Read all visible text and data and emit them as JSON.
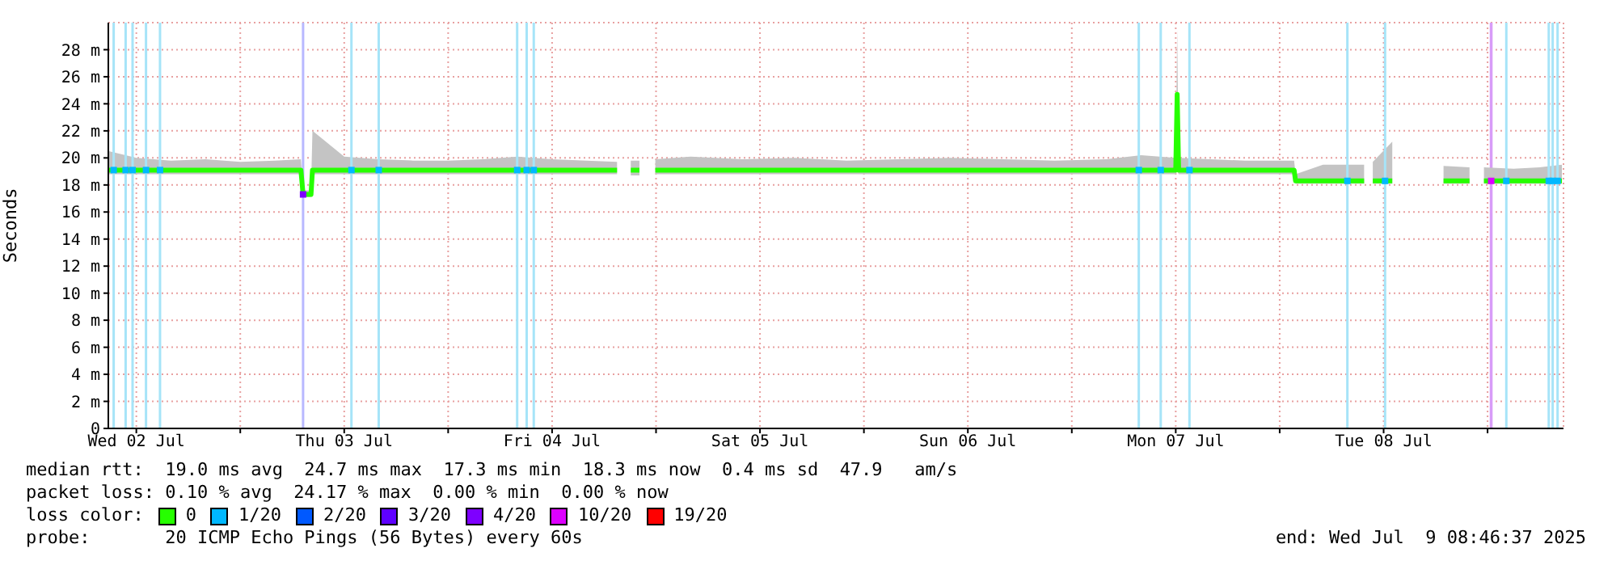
{
  "chart_data": {
    "type": "line",
    "ylabel": "Seconds",
    "legend_title": "loss color:",
    "legend": "bottom",
    "grid": true,
    "annotations": [
      "median rtt:  19.0 ms avg  24.7 ms max  17.3 ms min  18.3 ms now  0.4 ms sd  47.9   am/s",
      "packet loss: 0.10 % avg  24.17 % max  0.00 % min  0.00 % now",
      "probe:       20 ICMP Echo Pings (56 Bytes) every 60s",
      "end: Wed Jul  9 08:46:37 2025"
    ],
    "xlim": [
      "2025-07-02T08:46",
      "2025-07-09T08:46"
    ],
    "xticks": [
      {
        "value": "2025-07-02T12:00",
        "label": "Wed 02 Jul"
      },
      {
        "value": "2025-07-03T00:00",
        "label": null
      },
      {
        "value": "2025-07-03T12:00",
        "label": "Thu 03 Jul"
      },
      {
        "value": "2025-07-04T00:00",
        "label": null
      },
      {
        "value": "2025-07-04T12:00",
        "label": "Fri 04 Jul"
      },
      {
        "value": "2025-07-05T00:00",
        "label": null
      },
      {
        "value": "2025-07-05T12:00",
        "label": "Sat 05 Jul"
      },
      {
        "value": "2025-07-06T00:00",
        "label": null
      },
      {
        "value": "2025-07-06T12:00",
        "label": "Sun 06 Jul"
      },
      {
        "value": "2025-07-07T00:00",
        "label": null
      },
      {
        "value": "2025-07-07T12:00",
        "label": "Mon 07 Jul"
      },
      {
        "value": "2025-07-08T00:00",
        "label": null
      },
      {
        "value": "2025-07-08T12:00",
        "label": "Tue 08 Jul"
      },
      {
        "value": "2025-07-09T00:00",
        "label": null
      }
    ],
    "ylim": [
      0,
      30
    ],
    "yticks": [
      0,
      {
        "value": 2,
        "label": "2 m"
      },
      {
        "value": 4,
        "label": "4 m"
      },
      {
        "value": 6,
        "label": "6 m"
      },
      {
        "value": 8,
        "label": "8 m"
      },
      {
        "value": 10,
        "label": "10 m"
      },
      {
        "value": 12,
        "label": "12 m"
      },
      {
        "value": 14,
        "label": "14 m"
      },
      {
        "value": 16,
        "label": "16 m"
      },
      {
        "value": 18,
        "label": "18 m"
      },
      {
        "value": 20,
        "label": "20 m"
      },
      {
        "value": 22,
        "label": "22 m"
      },
      {
        "value": 24,
        "label": "24 m"
      },
      {
        "value": 26,
        "label": "26 m"
      },
      {
        "value": 28,
        "label": "28 m"
      }
    ],
    "bands": [
      {
        "axis": "x",
        "from": "2025-07-09T00:15",
        "to": "2025-07-09T00:35",
        "color": "#d89cf8"
      }
    ],
    "ref_lines": [
      {
        "axis": "x",
        "value": "2025-07-02T09:23",
        "color": "#a6e4f8"
      },
      {
        "axis": "x",
        "value": "2025-07-02T10:46",
        "color": "#a6e4f8"
      },
      {
        "axis": "x",
        "value": "2025-07-02T11:34",
        "color": "#a6e4f8"
      },
      {
        "axis": "x",
        "value": "2025-07-02T13:07",
        "color": "#a6e4f8"
      },
      {
        "axis": "x",
        "value": "2025-07-02T14:44",
        "color": "#a6e4f8"
      },
      {
        "axis": "x",
        "value": "2025-07-03T07:15",
        "color": "#b8b8ff"
      },
      {
        "axis": "x",
        "value": "2025-07-03T12:50",
        "color": "#a6e4f8"
      },
      {
        "axis": "x",
        "value": "2025-07-03T15:59",
        "color": "#a6e4f8"
      },
      {
        "axis": "x",
        "value": "2025-07-04T07:58",
        "color": "#a6e4f8"
      },
      {
        "axis": "x",
        "value": "2025-07-04T09:04",
        "color": "#a6e4f8"
      },
      {
        "axis": "x",
        "value": "2025-07-04T09:53",
        "color": "#a6e4f8"
      },
      {
        "axis": "x",
        "value": "2025-07-07T07:44",
        "color": "#a6e4f8"
      },
      {
        "axis": "x",
        "value": "2025-07-07T10:16",
        "color": "#a6e4f8"
      },
      {
        "axis": "x",
        "value": "2025-07-07T13:35",
        "color": "#a6e4f8"
      },
      {
        "axis": "x",
        "value": "2025-07-08T07:49",
        "color": "#a6e4f8"
      },
      {
        "axis": "x",
        "value": "2025-07-08T12:10",
        "color": "#a6e4f8"
      },
      {
        "axis": "x",
        "value": "2025-07-09T02:10",
        "color": "#a6e4f8"
      },
      {
        "axis": "x",
        "value": "2025-07-09T07:04",
        "color": "#a6e4f8"
      },
      {
        "axis": "x",
        "value": "2025-07-09T07:31",
        "color": "#a6e4f8"
      },
      {
        "axis": "x",
        "value": "2025-07-09T08:05",
        "color": "#a6e4f8"
      }
    ],
    "series": [
      {
        "name": "0",
        "color": "#26ff00",
        "x": [
          "2025-07-02T08:50",
          "2025-07-02T12:00",
          "2025-07-02T16:00",
          "2025-07-02T20:00",
          "2025-07-03T00:00",
          "2025-07-03T04:00",
          "2025-07-03T07:00",
          "2025-07-03T07:15",
          "2025-07-03T08:10",
          "2025-07-03T08:20",
          "2025-07-03T12:00",
          "2025-07-03T16:00",
          "2025-07-03T20:00",
          "2025-07-04T00:00",
          "2025-07-04T04:00",
          "2025-07-04T08:00",
          "2025-07-04T12:00",
          "2025-07-04T16:00",
          "2025-07-04T19:30",
          "2025-07-04T20:20",
          "2025-07-04T21:05",
          "2025-07-04T22:05",
          "2025-07-04T23:00",
          "2025-07-04T23:55",
          "2025-07-05T04:00",
          "2025-07-05T10:00",
          "2025-07-05T16:00",
          "2025-07-05T22:00",
          "2025-07-06T04:00",
          "2025-07-06T10:00",
          "2025-07-06T16:00",
          "2025-07-06T22:00",
          "2025-07-07T04:00",
          "2025-07-07T08:00",
          "2025-07-07T12:00",
          "2025-07-07T12:10",
          "2025-07-07T12:20",
          "2025-07-07T16:00",
          "2025-07-07T20:00",
          "2025-07-08T00:00",
          "2025-07-08T01:40",
          "2025-07-08T01:50",
          "2025-07-08T05:00",
          "2025-07-08T09:45",
          "2025-07-08T10:15",
          "2025-07-08T10:45",
          "2025-07-08T13:00",
          "2025-07-08T16:00",
          "2025-07-08T18:55",
          "2025-07-08T21:55",
          "2025-07-08T22:45",
          "2025-07-08T23:35",
          "2025-07-09T03:00",
          "2025-07-09T06:00",
          "2025-07-09T08:35"
        ],
        "values": [
          19.1,
          19.1,
          19.1,
          19.1,
          19.1,
          19.1,
          19.1,
          17.3,
          17.3,
          19.1,
          19.1,
          19.1,
          19.1,
          19.1,
          19.1,
          19.1,
          19.1,
          19.1,
          19.1,
          null,
          19.1,
          19.1,
          null,
          19.1,
          19.1,
          19.1,
          19.1,
          19.1,
          19.1,
          19.1,
          19.1,
          19.1,
          19.1,
          19.1,
          19.1,
          24.7,
          19.1,
          19.1,
          19.1,
          19.1,
          19.1,
          18.3,
          18.3,
          18.3,
          null,
          18.3,
          18.3,
          null,
          18.3,
          18.3,
          null,
          18.3,
          18.3,
          18.3,
          18.3
        ],
        "lower": [
          18.8,
          18.8,
          18.8,
          18.8,
          18.8,
          18.8,
          18.8,
          17.1,
          17.1,
          18.8,
          18.8,
          18.8,
          18.8,
          18.8,
          18.8,
          18.8,
          18.8,
          18.8,
          18.8,
          null,
          18.7,
          18.7,
          null,
          18.8,
          18.8,
          18.8,
          18.8,
          18.8,
          18.8,
          18.8,
          18.8,
          18.8,
          18.8,
          18.8,
          18.8,
          19.1,
          18.8,
          18.8,
          18.8,
          18.8,
          18.8,
          18.1,
          18.1,
          18.1,
          null,
          18.1,
          18.1,
          null,
          18.1,
          18.1,
          null,
          18.1,
          18.1,
          18.1,
          18.1
        ],
        "upper": [
          20.5,
          20.0,
          19.8,
          19.9,
          19.7,
          19.8,
          19.9,
          17.6,
          17.6,
          22.0,
          20.1,
          19.9,
          19.8,
          19.8,
          19.9,
          20.1,
          19.9,
          19.8,
          19.7,
          null,
          19.8,
          19.8,
          null,
          19.9,
          20.1,
          19.9,
          20.0,
          19.8,
          19.9,
          20.0,
          19.9,
          19.8,
          19.9,
          20.2,
          20.0,
          29.5,
          20.0,
          19.9,
          19.8,
          19.8,
          19.8,
          18.8,
          19.5,
          19.5,
          null,
          19.7,
          21.2,
          null,
          19.4,
          19.3,
          null,
          19.3,
          19.2,
          19.3,
          19.5
        ]
      },
      {
        "name": "1/20",
        "color": "#00b8ff",
        "type": "scatter",
        "marker": "square",
        "x": [
          "2025-07-02T09:23",
          "2025-07-02T10:46",
          "2025-07-02T11:34",
          "2025-07-02T13:07",
          "2025-07-02T14:44",
          "2025-07-03T12:50",
          "2025-07-03T15:59",
          "2025-07-04T07:58",
          "2025-07-04T09:04",
          "2025-07-04T09:53",
          "2025-07-07T07:44",
          "2025-07-07T10:16",
          "2025-07-07T13:35",
          "2025-07-08T07:49",
          "2025-07-08T12:10",
          "2025-07-09T02:10",
          "2025-07-09T07:04",
          "2025-07-09T07:31",
          "2025-07-09T08:05"
        ],
        "values": [
          19.1,
          19.1,
          19.1,
          19.1,
          19.1,
          19.1,
          19.1,
          19.1,
          19.1,
          19.1,
          19.1,
          19.1,
          19.1,
          18.3,
          18.3,
          18.3,
          18.3,
          18.3,
          18.3
        ]
      },
      {
        "name": "2/20",
        "color": "#0059ff",
        "type": "scatter"
      },
      {
        "name": "3/20",
        "color": "#5e00ff",
        "type": "scatter"
      },
      {
        "name": "4/20",
        "color": "#7e00ff",
        "type": "scatter",
        "marker": "square",
        "x": [
          "2025-07-03T07:15"
        ],
        "values": [
          17.3
        ]
      },
      {
        "name": "10/20",
        "color": "#dd00ff",
        "type": "scatter",
        "marker": "square",
        "x": [
          "2025-07-09T00:25"
        ],
        "values": [
          18.3
        ]
      },
      {
        "name": "19/20",
        "color": "#ff0000",
        "type": "scatter"
      }
    ]
  }
}
